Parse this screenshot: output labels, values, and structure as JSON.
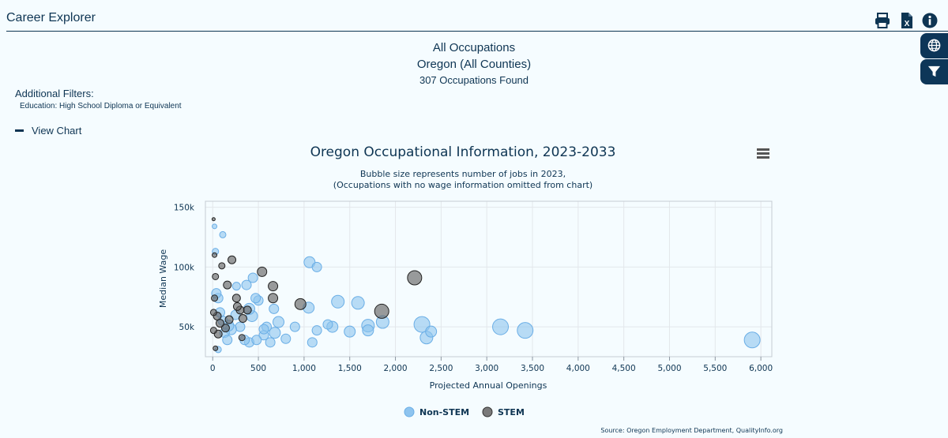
{
  "app": {
    "title": "Career Explorer"
  },
  "header": {
    "line1": "All Occupations",
    "line2": "Oregon (All Counties)",
    "line3": "307 Occupations Found"
  },
  "filters": {
    "label": "Additional Filters:",
    "education": "Education: High School Diploma or Equivalent"
  },
  "toggle": {
    "label": "View Chart"
  },
  "toolbar_icons": [
    "print-icon",
    "excel-export-icon",
    "info-icon"
  ],
  "side_buttons": [
    "globe-icon",
    "filter-icon"
  ],
  "colors": {
    "nonstem": "#8ec4ef",
    "stem": "#666666",
    "navy": "#0e3553"
  },
  "chart_data": {
    "type": "scatter",
    "title": "Oregon Occupational Information, 2023-2033",
    "subtitle_line1": "Bubble size represents number of jobs in 2023,",
    "subtitle_line2": "(Occupations with no wage information omitted from chart)",
    "xlabel": "Projected Annual Openings",
    "ylabel": "Median Wage",
    "xlim": [
      -80,
      6120
    ],
    "ylim": [
      25000,
      155000
    ],
    "x_ticks": [
      0,
      500,
      1000,
      1500,
      2000,
      2500,
      3000,
      3500,
      4000,
      4500,
      5000,
      5500,
      6000
    ],
    "x_tick_labels": [
      "0",
      "500",
      "1,000",
      "1,500",
      "2,000",
      "2,500",
      "3,000",
      "3,500",
      "4,000",
      "4,500",
      "5,000",
      "5,500",
      "6,000"
    ],
    "y_ticks": [
      50000,
      100000,
      150000
    ],
    "y_tick_labels": [
      "50k",
      "100k",
      "150k"
    ],
    "grid": true,
    "legend_position": "bottom-center",
    "source": "Source: Oregon Employment Department, QualityInfo.org",
    "series": [
      {
        "name": "Non-STEM",
        "color": "#8ec4ef",
        "points": [
          [
            5905,
            39000,
            10
          ],
          [
            3420,
            47000,
            10
          ],
          [
            3150,
            50000,
            10
          ],
          [
            2290,
            52000,
            10
          ],
          [
            2340,
            41000,
            8
          ],
          [
            2390,
            46000,
            7
          ],
          [
            1860,
            54000,
            8
          ],
          [
            1700,
            51000,
            8
          ],
          [
            1700,
            47000,
            7
          ],
          [
            1590,
            70000,
            8
          ],
          [
            1370,
            71000,
            8
          ],
          [
            1500,
            46000,
            7
          ],
          [
            1310,
            50000,
            7
          ],
          [
            1260,
            52000,
            6
          ],
          [
            1140,
            47000,
            6
          ],
          [
            1090,
            37000,
            6
          ],
          [
            1050,
            66000,
            7
          ],
          [
            1060,
            104000,
            7
          ],
          [
            1140,
            100000,
            6
          ],
          [
            900,
            50000,
            6
          ],
          [
            800,
            40000,
            6
          ],
          [
            720,
            54000,
            7
          ],
          [
            680,
            45000,
            7
          ],
          [
            670,
            65000,
            6
          ],
          [
            590,
            50000,
            6
          ],
          [
            560,
            43000,
            6
          ],
          [
            560,
            48000,
            6
          ],
          [
            500,
            72000,
            6
          ],
          [
            470,
            74000,
            6
          ],
          [
            440,
            91000,
            6
          ],
          [
            430,
            59000,
            7
          ],
          [
            400,
            65000,
            7
          ],
          [
            400,
            37000,
            6
          ],
          [
            370,
            85000,
            6
          ],
          [
            300,
            50000,
            6
          ],
          [
            260,
            84000,
            5
          ],
          [
            250,
            60000,
            6
          ],
          [
            200,
            48000,
            7
          ],
          [
            170,
            51000,
            7
          ],
          [
            130,
            45000,
            6
          ],
          [
            110,
            55000,
            6
          ],
          [
            80,
            62000,
            6
          ],
          [
            60,
            74000,
            6
          ],
          [
            40,
            78000,
            6
          ],
          [
            30,
            113000,
            4
          ],
          [
            20,
            134000,
            3
          ],
          [
            110,
            127000,
            4
          ],
          [
            630,
            37000,
            6
          ],
          [
            480,
            39000,
            6
          ],
          [
            350,
            39000,
            6
          ],
          [
            160,
            39000,
            6
          ],
          [
            60,
            31000,
            4
          ]
        ]
      },
      {
        "name": "STEM",
        "color": "#666666",
        "points": [
          [
            2210,
            91000,
            9
          ],
          [
            1850,
            63000,
            9
          ],
          [
            960,
            69000,
            7
          ],
          [
            660,
            84000,
            6
          ],
          [
            660,
            74000,
            6
          ],
          [
            540,
            96000,
            6
          ],
          [
            380,
            64000,
            5
          ],
          [
            330,
            57000,
            5
          ],
          [
            300,
            64000,
            5
          ],
          [
            270,
            67000,
            5
          ],
          [
            260,
            74000,
            5
          ],
          [
            210,
            106000,
            5
          ],
          [
            160,
            85000,
            5
          ],
          [
            180,
            56000,
            5
          ],
          [
            140,
            49000,
            5
          ],
          [
            100,
            101000,
            4
          ],
          [
            80,
            53000,
            5
          ],
          [
            60,
            44000,
            5
          ],
          [
            50,
            59000,
            5
          ],
          [
            30,
            92000,
            4
          ],
          [
            20,
            110000,
            3
          ],
          [
            10,
            140000,
            2
          ],
          [
            20,
            74000,
            4
          ],
          [
            10,
            62000,
            4
          ],
          [
            10,
            47000,
            4
          ],
          [
            30,
            32000,
            3
          ],
          [
            320,
            41000,
            4
          ]
        ]
      }
    ]
  }
}
